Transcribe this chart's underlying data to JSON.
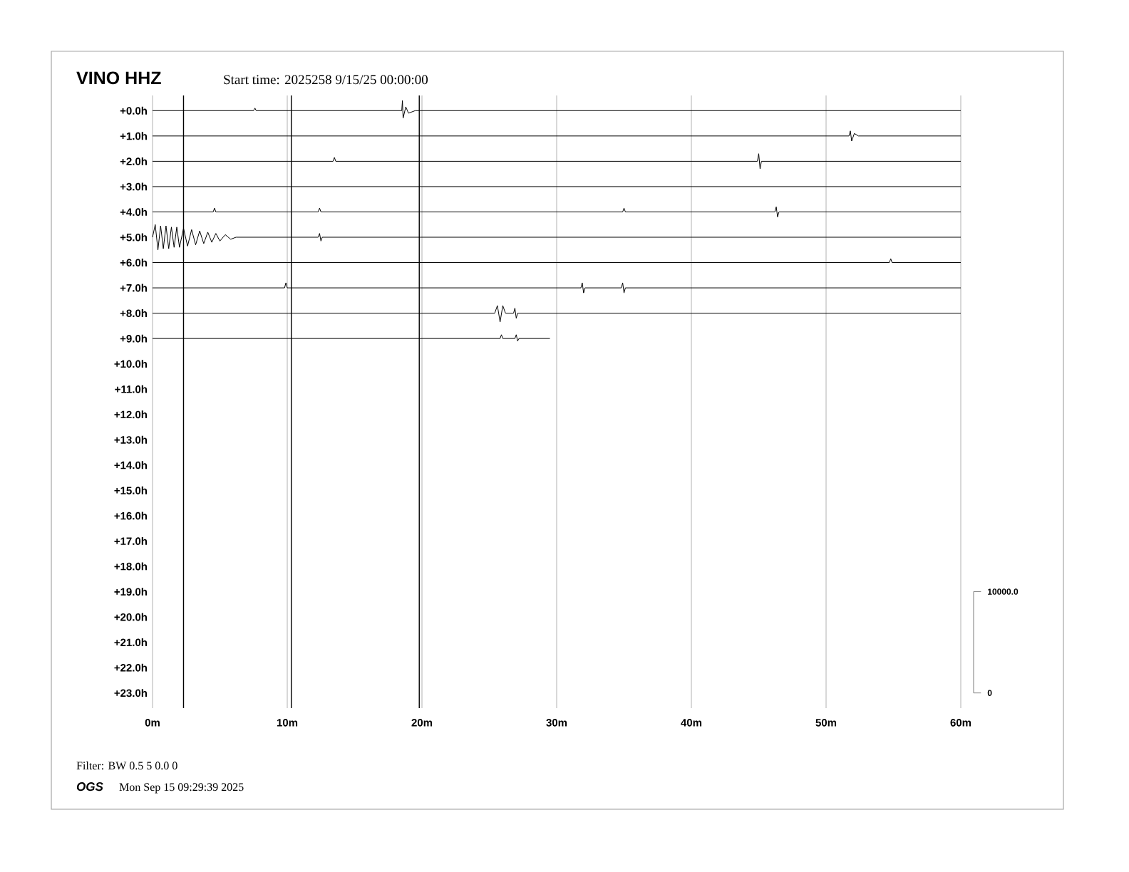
{
  "chart_data": {
    "type": "line",
    "title": "VINO HHZ",
    "subtitle": "Start time: 2025258  9/15/25 00:00:00",
    "annotations": [
      "Filter: BW 0.5 5 0.0 0",
      "OGS",
      "Mon Sep 15 09:29:39 2025",
      "10000.0",
      "0"
    ],
    "xlim": [
      0,
      60
    ],
    "xticks": [
      {
        "value": 0,
        "label": "0m"
      },
      {
        "value": 10,
        "label": "10m"
      },
      {
        "value": 20,
        "label": "20m"
      },
      {
        "value": 30,
        "label": "30m"
      },
      {
        "value": 40,
        "label": "40m"
      },
      {
        "value": 50,
        "label": "50m"
      },
      {
        "value": 60,
        "label": "60m"
      }
    ],
    "ylim": [
      23.6,
      -0.6
    ],
    "yticks": [
      {
        "value": 0,
        "label": "+0.0h"
      },
      {
        "value": 1,
        "label": "+1.0h"
      },
      {
        "value": 2,
        "label": "+2.0h"
      },
      {
        "value": 3,
        "label": "+3.0h"
      },
      {
        "value": 4,
        "label": "+4.0h"
      },
      {
        "value": 5,
        "label": "+5.0h"
      },
      {
        "value": 6,
        "label": "+6.0h"
      },
      {
        "value": 7,
        "label": "+7.0h"
      },
      {
        "value": 8,
        "label": "+8.0h"
      },
      {
        "value": 9,
        "label": "+9.0h"
      },
      {
        "value": 10,
        "label": "+10.0h"
      },
      {
        "value": 11,
        "label": "+11.0h"
      },
      {
        "value": 12,
        "label": "+12.0h"
      },
      {
        "value": 13,
        "label": "+13.0h"
      },
      {
        "value": 14,
        "label": "+14.0h"
      },
      {
        "value": 15,
        "label": "+15.0h"
      },
      {
        "value": 16,
        "label": "+16.0h"
      },
      {
        "value": 17,
        "label": "+17.0h"
      },
      {
        "value": 18,
        "label": "+18.0h"
      },
      {
        "value": 19,
        "label": "+19.0h"
      },
      {
        "value": 20,
        "label": "+20.0h"
      },
      {
        "value": 21,
        "label": "+21.0h"
      },
      {
        "value": 22,
        "label": "+22.0h"
      },
      {
        "value": 23,
        "label": "+23.0h"
      }
    ],
    "grid": "x",
    "marker": "none",
    "ref_lines": [
      {
        "axis": "x",
        "value": 2.3,
        "color": "#000000"
      },
      {
        "axis": "x",
        "value": 10.3,
        "color": "#000000"
      },
      {
        "axis": "x",
        "value": 19.8,
        "color": "#000000"
      }
    ],
    "series": [
      {
        "color": "#000000",
        "x": [
          0,
          7.5,
          7.6,
          7.7,
          18.5,
          18.55,
          18.6,
          18.8,
          19.0,
          19.5,
          60
        ],
        "values": [
          0,
          0,
          -0.1,
          0,
          0,
          -0.4,
          0.3,
          -0.15,
          0.1,
          0,
          0
        ]
      },
      {
        "color": "#000000",
        "x": [
          0,
          51.7,
          51.8,
          51.9,
          52.1,
          52.4,
          60
        ],
        "values": [
          1,
          1,
          0.8,
          1.2,
          0.9,
          1,
          1
        ]
      },
      {
        "color": "#000000",
        "x": [
          0,
          13.4,
          13.5,
          13.6,
          44.9,
          45,
          45.1,
          45.2,
          60
        ],
        "values": [
          2,
          2,
          1.85,
          2,
          2,
          1.7,
          2.3,
          2,
          2
        ]
      },
      {
        "color": "#000000",
        "x": [
          0,
          60
        ],
        "values": [
          3,
          3
        ]
      },
      {
        "color": "#000000",
        "x": [
          0,
          4.5,
          4.6,
          4.7,
          12.3,
          12.4,
          12.5,
          34.9,
          35,
          35.1,
          46.2,
          46.3,
          46.4,
          46.5,
          60
        ],
        "values": [
          4,
          4,
          3.85,
          4,
          4,
          3.85,
          4,
          4,
          3.85,
          4,
          4,
          3.8,
          4.2,
          4,
          4
        ]
      },
      {
        "color": "#000000",
        "x": [
          0,
          0.2,
          0.4,
          0.6,
          0.8,
          1.0,
          1.2,
          1.4,
          1.6,
          1.8,
          2.0,
          2.3,
          2.6,
          2.9,
          3.2,
          3.5,
          3.8,
          4.1,
          4.4,
          4.7,
          5.0,
          5.4,
          5.8,
          6.2,
          12.3,
          12.4,
          12.5,
          12.6,
          60
        ],
        "values": [
          5,
          4.5,
          5.5,
          4.55,
          5.45,
          4.55,
          5.45,
          4.6,
          5.4,
          4.6,
          5.4,
          4.65,
          5.35,
          4.7,
          5.3,
          4.75,
          5.25,
          4.8,
          5.2,
          4.85,
          5.15,
          4.9,
          5.08,
          5,
          5,
          4.85,
          5.15,
          5,
          5
        ]
      },
      {
        "color": "#000000",
        "x": [
          0,
          54.7,
          54.8,
          54.9,
          60
        ],
        "values": [
          6,
          6,
          5.85,
          6,
          6
        ]
      },
      {
        "color": "#000000",
        "x": [
          0,
          9.8,
          9.9,
          10.0,
          31.8,
          31.9,
          32.0,
          32.1,
          34.8,
          34.9,
          35.0,
          35.1,
          60
        ],
        "values": [
          7,
          7,
          6.8,
          7,
          7,
          6.8,
          7.2,
          7,
          7,
          6.8,
          7.2,
          7,
          7
        ]
      },
      {
        "color": "#000000",
        "x": [
          0,
          25.4,
          25.6,
          25.8,
          26.0,
          26.2,
          26.8,
          26.9,
          27.0,
          27.1,
          60
        ],
        "values": [
          8,
          8,
          7.7,
          8.35,
          7.7,
          8,
          8,
          7.8,
          8.2,
          8,
          8
        ]
      },
      {
        "color": "#000000",
        "x": [
          0,
          25.8,
          25.9,
          26.0,
          26.9,
          27.0,
          27.1,
          27.2,
          29.5
        ],
        "values": [
          9,
          9,
          8.85,
          9,
          9,
          8.85,
          9.1,
          9,
          9
        ]
      }
    ]
  }
}
